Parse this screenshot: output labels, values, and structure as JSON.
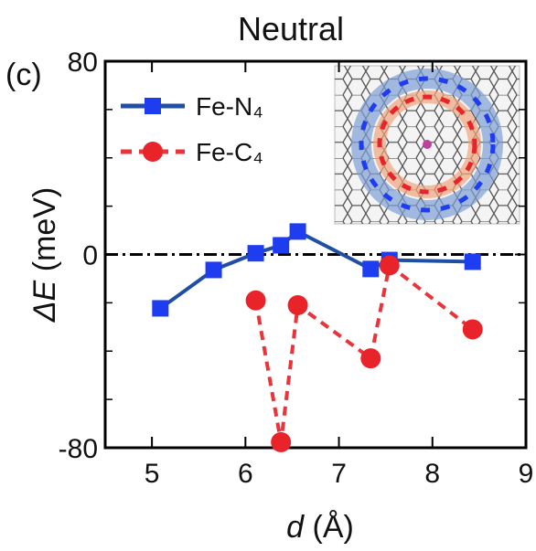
{
  "chart_data": {
    "type": "line",
    "title": "Neutral",
    "panel_label": "(c)",
    "xlabel": {
      "symbol": "d",
      "unit": "(Å)"
    },
    "ylabel": {
      "symbol": "ΔE",
      "unit": "(meV)"
    },
    "xlim": [
      4.5,
      9
    ],
    "xticks": [
      5,
      6,
      7,
      8,
      9
    ],
    "ylim": [
      -80,
      80
    ],
    "yticks": [
      -80,
      0,
      80
    ],
    "yminorticks": [
      -60,
      -40,
      -20,
      20,
      40,
      60
    ],
    "reference_line": 0,
    "series": [
      {
        "name": "Fe-N₄",
        "color": "#1f4ea3",
        "marker_color": "#1e3cf0",
        "marker": "square",
        "dash": false,
        "x": [
          5.09,
          5.66,
          6.11,
          6.38,
          6.56,
          7.34,
          7.54,
          8.43
        ],
        "values": [
          -22.3,
          -6.4,
          0.5,
          3.8,
          9.5,
          -6,
          -2.3,
          -3
        ]
      },
      {
        "name": "Fe-C₄",
        "color": "#e8343a",
        "marker_color": "#e8232a",
        "marker": "circle",
        "dash": true,
        "x": [
          6.11,
          6.38,
          6.56,
          7.34,
          7.54,
          8.43
        ],
        "values": [
          -19,
          -77.7,
          -21,
          -43,
          -4.5,
          -31
        ]
      }
    ]
  }
}
